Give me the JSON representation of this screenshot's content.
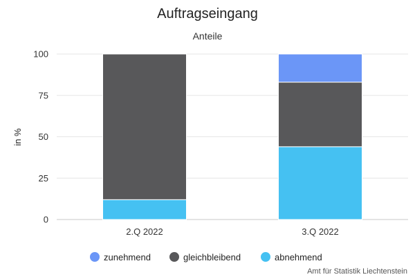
{
  "chart_data": {
    "type": "bar",
    "stacked": true,
    "title": "Auftragseingang",
    "subtitle": "Anteile",
    "ylabel": "in %",
    "xlabel": "",
    "ylim": [
      0,
      100
    ],
    "yticks": [
      0,
      25,
      50,
      75,
      100
    ],
    "grid": true,
    "legend_position": "bottom",
    "categories": [
      "2.Q 2022",
      "3.Q 2022"
    ],
    "series": [
      {
        "name": "zunehmend",
        "color": "#6b96f7",
        "values": [
          0,
          17
        ]
      },
      {
        "name": "gleichbleibend",
        "color": "#58585a",
        "values": [
          88,
          39
        ]
      },
      {
        "name": "abnehmend",
        "color": "#45c1f2",
        "values": [
          12,
          44
        ]
      }
    ]
  },
  "credit": "Amt für Statistik Liechtenstein"
}
